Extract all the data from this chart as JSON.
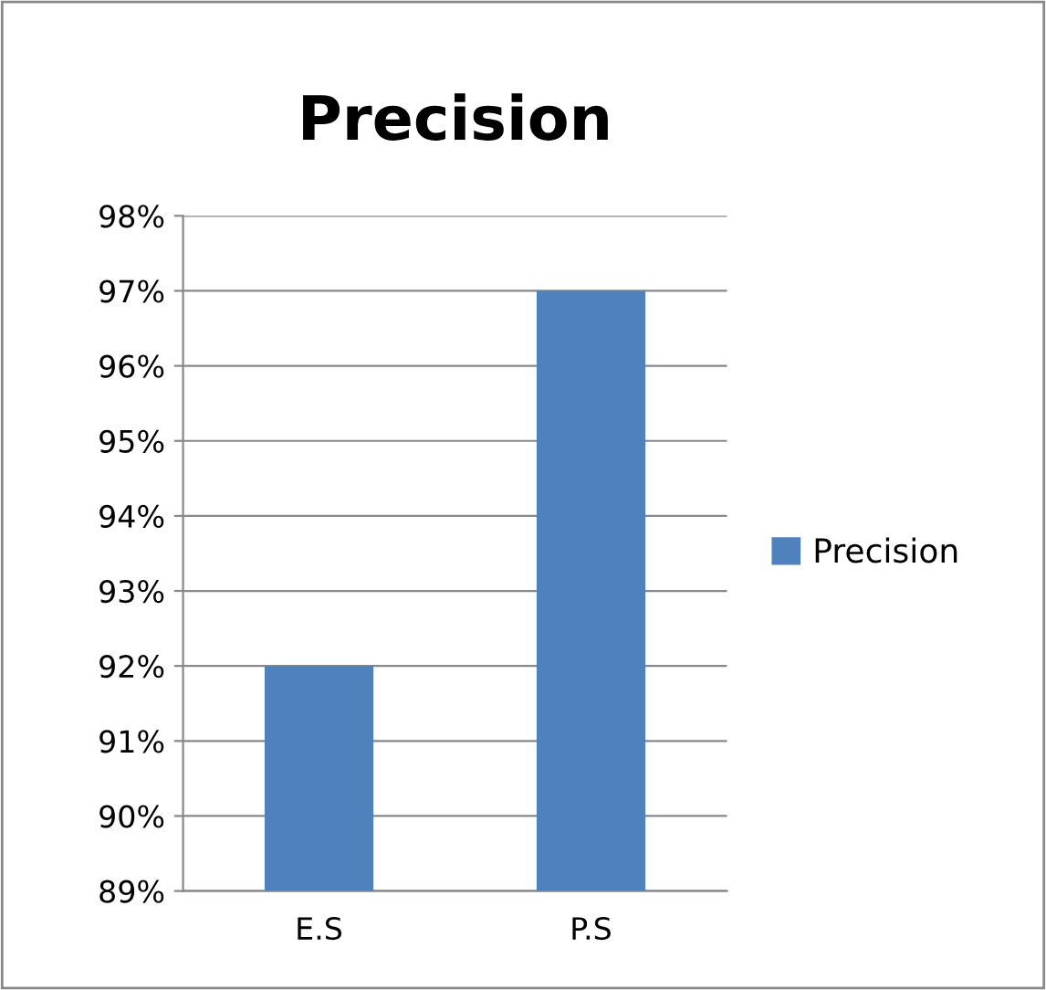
{
  "chart_data": {
    "type": "bar",
    "title": "Precision",
    "categories": [
      "E.S",
      "P.S"
    ],
    "series": [
      {
        "name": "Precision",
        "color": "#4f81bd",
        "values": [
          92,
          97
        ]
      }
    ],
    "ylim": [
      89,
      98
    ],
    "yticks": [
      {
        "value": 89,
        "label": "89%"
      },
      {
        "value": 90,
        "label": "90%"
      },
      {
        "value": 91,
        "label": "91%"
      },
      {
        "value": 92,
        "label": "92%"
      },
      {
        "value": 93,
        "label": "93%"
      },
      {
        "value": 94,
        "label": "94%"
      },
      {
        "value": 95,
        "label": "95%"
      },
      {
        "value": 96,
        "label": "96%"
      },
      {
        "value": 97,
        "label": "97%"
      },
      {
        "value": 98,
        "label": "98%"
      }
    ],
    "grid": "y",
    "legend": "right"
  }
}
